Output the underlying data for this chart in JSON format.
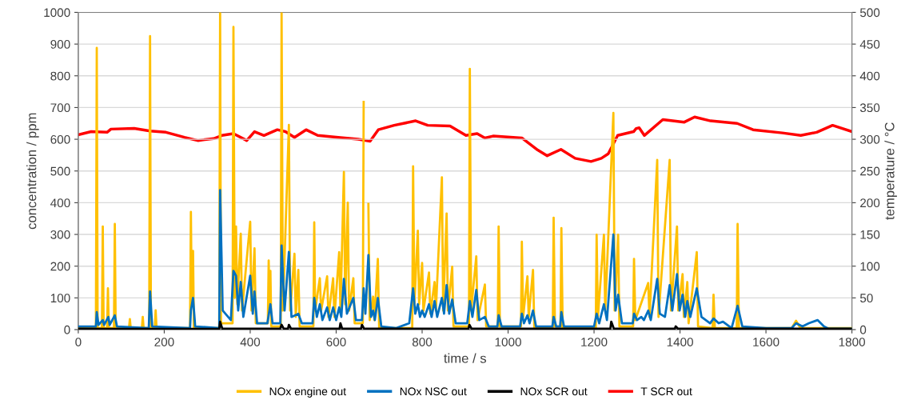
{
  "chart_data": {
    "type": "line",
    "xlabel": "time / s",
    "ylabel": "concentration / ppm",
    "y2label": "temperature / °C",
    "xlim": [
      0,
      1800
    ],
    "xticks": [
      0,
      200,
      400,
      600,
      800,
      1000,
      1200,
      1400,
      1600,
      1800
    ],
    "ylim": [
      0,
      1000
    ],
    "yticks": [
      0,
      100,
      200,
      300,
      400,
      500,
      600,
      700,
      800,
      900,
      1000
    ],
    "y2lim": [
      0,
      500
    ],
    "y2ticks": [
      0,
      50,
      100,
      150,
      200,
      250,
      300,
      350,
      400,
      450,
      500
    ],
    "grid": "y",
    "legend": "bottom",
    "marker": "none",
    "line_style": "solid",
    "series": [
      {
        "name": "NOx engine out",
        "color": "#ffc000",
        "x": [
          0,
          41,
          43,
          45,
          55,
          57,
          59,
          67,
          69,
          71,
          83,
          85,
          87,
          118,
          120,
          122,
          148,
          150,
          152,
          165,
          167,
          169,
          178,
          180,
          182,
          260,
          262,
          264,
          267,
          269,
          328,
          330,
          332,
          359,
          361,
          364,
          367,
          370,
          378,
          381,
          400,
          403,
          410,
          413,
          441,
          443,
          445,
          447,
          449,
          471,
          473,
          476,
          490,
          493,
          503,
          506,
          512,
          515,
          547,
          549,
          551,
          562,
          565,
          579,
          582,
          593,
          596,
          607,
          610,
          618,
          621,
          627,
          630,
          640,
          643,
          662,
          664,
          667,
          675,
          678,
          686,
          689,
          697,
          700,
          777,
          779,
          782,
          790,
          793,
          800,
          803,
          816,
          819,
          829,
          832,
          846,
          849,
          857,
          860,
          870,
          873,
          909,
          911,
          914,
          926,
          929,
          946,
          949,
          976,
          978,
          981,
          1030,
          1032,
          1035,
          1045,
          1048,
          1058,
          1061,
          1104,
          1106,
          1109,
          1122,
          1124,
          1127,
          1204,
          1206,
          1209,
          1223,
          1226,
          1245,
          1248,
          1256,
          1259,
          1291,
          1293,
          1296,
          1326,
          1329,
          1347,
          1350,
          1376,
          1379,
          1393,
          1396,
          1406,
          1409,
          1417,
          1420,
          1439,
          1442,
          1476,
          1478,
          1481,
          1532,
          1534,
          1537,
          1660,
          1670,
          1680,
          1800
        ],
        "values": [
          5,
          5,
          888,
          5,
          5,
          325,
          5,
          5,
          130,
          5,
          5,
          333,
          5,
          5,
          33,
          5,
          5,
          40,
          5,
          5,
          925,
          5,
          5,
          61,
          5,
          5,
          371,
          80,
          248,
          5,
          5,
          1000,
          20,
          20,
          954,
          100,
          325,
          80,
          302,
          60,
          340,
          60,
          256,
          20,
          20,
          218,
          60,
          185,
          10,
          10,
          1000,
          60,
          645,
          60,
          239,
          40,
          188,
          10,
          10,
          338,
          60,
          162,
          60,
          168,
          40,
          162,
          40,
          244,
          60,
          497,
          80,
          400,
          60,
          162,
          20,
          20,
          718,
          null,
          396,
          30,
          104,
          30,
          223,
          5,
          5,
          515,
          80,
          312,
          80,
          210,
          60,
          180,
          50,
          150,
          60,
          480,
          60,
          366,
          60,
          198,
          10,
          10,
          822,
          60,
          231,
          30,
          142,
          10,
          10,
          325,
          10,
          10,
          277,
          40,
          168,
          40,
          188,
          5,
          5,
          353,
          10,
          10,
          320,
          5,
          5,
          299,
          40,
          299,
          60,
          683,
          60,
          299,
          10,
          10,
          223,
          30,
          147,
          40,
          535,
          40,
          535,
          60,
          325,
          60,
          175,
          40,
          150,
          20,
          244,
          10,
          5,
          110,
          5,
          5,
          333,
          5,
          5,
          28,
          5,
          5
        ]
      },
      {
        "name": "NOx NSC out",
        "color": "#0070c0",
        "x": [
          0,
          41,
          43,
          47,
          57,
          60,
          70,
          73,
          85,
          90,
          164,
          167,
          172,
          260,
          262,
          267,
          272,
          328,
          330,
          336,
          355,
          361,
          367,
          372,
          378,
          384,
          400,
          406,
          410,
          416,
          440,
          447,
          452,
          470,
          473,
          480,
          490,
          496,
          512,
          520,
          545,
          549,
          555,
          562,
          568,
          579,
          585,
          593,
          600,
          607,
          612,
          618,
          625,
          640,
          646,
          660,
          664,
          668,
          675,
          681,
          686,
          690,
          697,
          705,
          740,
          770,
          779,
          784,
          790,
          795,
          800,
          806,
          816,
          822,
          829,
          835,
          846,
          851,
          857,
          863,
          870,
          878,
          905,
          911,
          917,
          926,
          933,
          946,
          955,
          975,
          978,
          985,
          1028,
          1032,
          1037,
          1045,
          1050,
          1058,
          1065,
          1103,
          1106,
          1112,
          1121,
          1124,
          1130,
          1200,
          1206,
          1212,
          1223,
          1230,
          1245,
          1250,
          1256,
          1265,
          1290,
          1293,
          1300,
          1310,
          1316,
          1326,
          1332,
          1347,
          1353,
          1365,
          1376,
          1382,
          1393,
          1399,
          1406,
          1412,
          1417,
          1424,
          1439,
          1450,
          1470,
          1478,
          1490,
          1500,
          1520,
          1534,
          1545,
          1600,
          1660,
          1670,
          1685,
          1700,
          1720,
          1735,
          1745,
          1800
        ],
        "values": [
          10,
          10,
          55,
          15,
          30,
          15,
          40,
          15,
          45,
          10,
          5,
          120,
          10,
          5,
          60,
          100,
          10,
          5,
          440,
          60,
          30,
          185,
          170,
          60,
          150,
          40,
          170,
          50,
          120,
          20,
          20,
          80,
          20,
          20,
          265,
          60,
          245,
          40,
          50,
          20,
          20,
          100,
          40,
          80,
          30,
          70,
          30,
          70,
          30,
          70,
          40,
          160,
          50,
          100,
          30,
          30,
          130,
          50,
          235,
          40,
          60,
          30,
          100,
          10,
          5,
          20,
          130,
          50,
          80,
          40,
          60,
          40,
          80,
          40,
          90,
          40,
          100,
          50,
          140,
          50,
          95,
          20,
          20,
          90,
          40,
          125,
          30,
          40,
          10,
          10,
          45,
          10,
          10,
          50,
          20,
          45,
          20,
          60,
          10,
          10,
          40,
          10,
          10,
          55,
          10,
          10,
          50,
          20,
          80,
          30,
          300,
          60,
          110,
          20,
          20,
          50,
          30,
          40,
          30,
          60,
          30,
          160,
          50,
          40,
          140,
          60,
          175,
          60,
          110,
          40,
          90,
          40,
          130,
          40,
          20,
          35,
          20,
          25,
          5,
          75,
          10,
          5,
          5,
          20,
          10,
          20,
          30,
          10,
          3,
          3
        ]
      },
      {
        "name": "NOx SCR out",
        "color": "#000000",
        "x": [
          0,
          100,
          328,
          330,
          335,
          470,
          473,
          478,
          488,
          490,
          495,
          608,
          610,
          614,
          658,
          660,
          665,
          908,
          910,
          915,
          1238,
          1240,
          1246,
          1388,
          1390,
          1395,
          1800
        ],
        "values": [
          3,
          2,
          2,
          25,
          3,
          3,
          15,
          3,
          3,
          15,
          3,
          3,
          20,
          3,
          3,
          15,
          3,
          3,
          15,
          3,
          3,
          25,
          3,
          3,
          10,
          3,
          3
        ]
      },
      {
        "name": "T SCR out",
        "color": "#ff0000",
        "axis": "y2",
        "x": [
          0,
          30,
          67,
          76,
          130,
          167,
          204,
          247,
          278,
          315,
          334,
          361,
          392,
          410,
          432,
          463,
          482,
          503,
          530,
          557,
          605,
          651,
          679,
          698,
          735,
          785,
          813,
          865,
          902,
          928,
          946,
          965,
          1032,
          1069,
          1091,
          1123,
          1156,
          1193,
          1217,
          1233,
          1255,
          1292,
          1298,
          1305,
          1317,
          1360,
          1410,
          1434,
          1471,
          1533,
          1570,
          1638,
          1681,
          1718,
          1755,
          1800
        ],
        "values": [
          307,
          312,
          311,
          316,
          317,
          313,
          311,
          303,
          298,
          301,
          306,
          309,
          298,
          312,
          306,
          315,
          312,
          303,
          315,
          306,
          303,
          300,
          297,
          315,
          322,
          329,
          322,
          321,
          306,
          309,
          302,
          305,
          302,
          283,
          274,
          284,
          270,
          265,
          270,
          277,
          306,
          312,
          317,
          318,
          306,
          331,
          327,
          335,
          329,
          325,
          315,
          310,
          306,
          311,
          322,
          312
        ]
      }
    ]
  }
}
